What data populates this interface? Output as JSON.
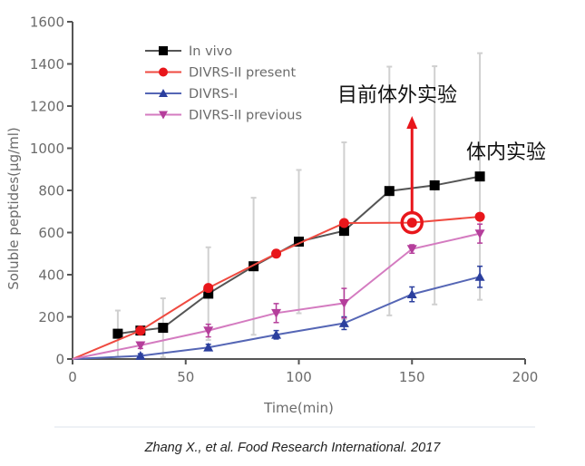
{
  "chart_data": {
    "type": "line",
    "title": "",
    "xlabel": "Time(min)",
    "ylabel": "Soluble peptides(μg/ml)",
    "xlim": [
      0,
      200
    ],
    "ylim": [
      0,
      1600
    ],
    "xticks": [
      0,
      50,
      100,
      150,
      200
    ],
    "yticks": [
      0,
      200,
      400,
      600,
      800,
      1000,
      1200,
      1400,
      1600
    ],
    "grid": false,
    "legend_position": "top-left",
    "series": [
      {
        "name": "In vivo",
        "color": "#000000",
        "line_color": "#555555",
        "marker": "square",
        "x": [
          20,
          30,
          40,
          60,
          80,
          100,
          120,
          140,
          160,
          180
        ],
        "y": [
          120,
          135,
          148,
          310,
          440,
          557,
          608,
          797,
          824,
          866
        ],
        "error": [
          110,
          0,
          140,
          220,
          325,
          340,
          420,
          590,
          565,
          585
        ]
      },
      {
        "name": "DIVRS-II present",
        "color": "#e8161b",
        "line_color": "#ef4a40",
        "marker": "circle",
        "x": [
          0,
          30,
          60,
          90,
          120,
          150,
          180
        ],
        "y": [
          0,
          135,
          337,
          500,
          645,
          647,
          675
        ],
        "error": [
          0,
          0,
          0,
          0,
          0,
          0,
          0
        ]
      },
      {
        "name": "DIVRS-I",
        "color": "#2b3f9e",
        "line_color": "#5566b5",
        "marker": "triangle-up",
        "x": [
          0,
          30,
          60,
          90,
          120,
          150,
          180
        ],
        "y": [
          0,
          15,
          55,
          115,
          170,
          307,
          390
        ],
        "error": [
          0,
          10,
          15,
          20,
          30,
          35,
          50
        ]
      },
      {
        "name": "DIVRS-II previous",
        "color": "#b53e9b",
        "line_color": "#d47bc0",
        "marker": "triangle-down",
        "x": [
          0,
          30,
          60,
          90,
          120,
          150,
          180
        ],
        "y": [
          0,
          65,
          135,
          218,
          265,
          522,
          595
        ],
        "error": [
          0,
          15,
          30,
          45,
          70,
          20,
          45
        ]
      }
    ],
    "annotations": [
      {
        "text": "目前体外实验",
        "x": 150,
        "y": 1300,
        "arrow_from": [
          150,
          647
        ],
        "highlight_point": [
          150,
          647
        ],
        "color": "#e8161b"
      },
      {
        "text": "体内实验",
        "x": 185,
        "y": 1000
      }
    ]
  },
  "citation": "Zhang X., et al. Food Research International. 2017"
}
